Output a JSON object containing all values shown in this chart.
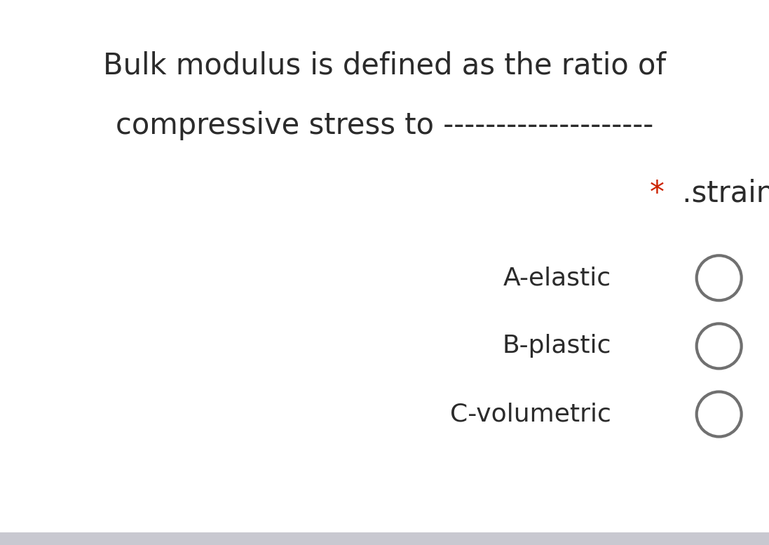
{
  "bg_color": "#ffffff",
  "bottom_bar_color": "#c8c8d0",
  "title_line1": "Bulk modulus is defined as the ratio of",
  "title_line2": "compressive stress to --------------------",
  "star_text": "*",
  "strain_text": " .strain",
  "subtitle_star_color": "#cc2200",
  "subtitle_text_color": "#2b2b2b",
  "options": [
    "A-elastic",
    "B-plastic",
    "C-volumetric"
  ],
  "title_color": "#2b2b2b",
  "option_color": "#2b2b2b",
  "title_fontsize": 30,
  "subtitle_fontsize": 30,
  "option_fontsize": 26,
  "circle_color": "#707070",
  "circle_linewidth": 3.0,
  "fig_width": 10.97,
  "fig_height": 7.77,
  "dpi": 100
}
